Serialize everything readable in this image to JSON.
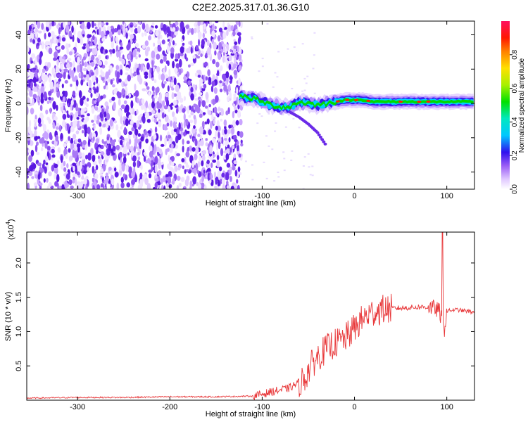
{
  "title": "C2E2.2025.317.01.36.G10",
  "chart_data": [
    {
      "type": "heatmap",
      "xlabel": "Height of straight line (km)",
      "ylabel": "Frequency (Hz)",
      "xlim": [
        -355,
        130
      ],
      "ylim": [
        -50,
        48
      ],
      "x_ticks": [
        -300,
        -200,
        -100,
        0,
        100
      ],
      "y_ticks": [
        -40,
        -20,
        0,
        20,
        40
      ],
      "colorbar": {
        "label": "Normalized spectral amplitude",
        "range": [
          0,
          1
        ],
        "ticks": [
          0.0,
          0.2,
          0.4,
          0.6,
          0.8
        ]
      },
      "noise_region_x": [
        -355,
        -122
      ],
      "signal_trace": {
        "x": [
          -125,
          -110,
          -100,
          -90,
          -80,
          -70,
          -60,
          -50,
          -40,
          -30,
          -20,
          -10,
          0,
          10,
          20,
          40,
          60,
          80,
          100,
          130
        ],
        "y": [
          4,
          3,
          1,
          -1,
          -2,
          -2,
          1,
          0,
          -1,
          0,
          1,
          2,
          2,
          2,
          1,
          1,
          1,
          1,
          1,
          1
        ]
      },
      "secondary_trace": {
        "x": [
          -70,
          -60,
          -50,
          -40,
          -30
        ],
        "y": [
          -5,
          -8,
          -12,
          -17,
          -25
        ]
      }
    },
    {
      "type": "line",
      "xlabel": "Height of straight line (km)",
      "ylabel": "SNR (10 * v/v)",
      "y_multiplier": "(x10",
      "y_multiplier_exp": "4",
      "y_multiplier_close": ")",
      "xlim": [
        -355,
        130
      ],
      "ylim": [
        0,
        2.45
      ],
      "x_ticks": [
        -300,
        -200,
        -100,
        0,
        100
      ],
      "y_ticks": [
        0.5,
        1.0,
        1.5,
        2.0
      ],
      "series": [
        {
          "color": "#e8383a",
          "x": [
            -355,
            -300,
            -250,
            -200,
            -150,
            -110,
            -90,
            -70,
            -55,
            -45,
            -35,
            -25,
            -10,
            0,
            10,
            20,
            30,
            45,
            60,
            75,
            85,
            92,
            97,
            100,
            110,
            120,
            130
          ],
          "y": [
            0.03,
            0.04,
            0.04,
            0.05,
            0.05,
            0.06,
            0.12,
            0.18,
            0.3,
            0.55,
            0.7,
            0.8,
            0.9,
            1.05,
            1.2,
            1.28,
            1.32,
            1.34,
            1.35,
            1.36,
            1.35,
            1.3,
            1.0,
            1.3,
            1.32,
            1.3,
            1.28
          ]
        }
      ]
    }
  ]
}
